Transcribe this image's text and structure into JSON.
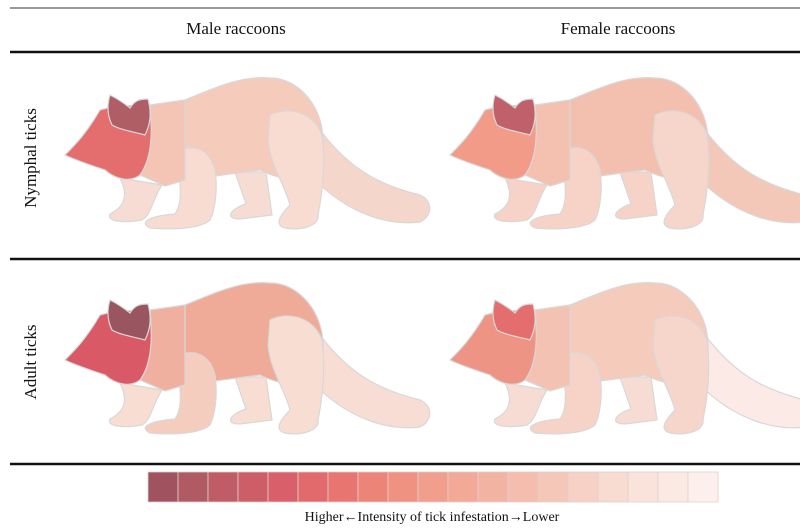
{
  "header": {
    "columns": [
      "Male raccoons",
      "Female raccoons"
    ]
  },
  "rows": [
    {
      "label": "Nymphal ticks",
      "panels": [
        {
          "colors": {
            "tail": "#f5d6cb",
            "far_legs": "#f7dcd3",
            "body": "#f5cbbb",
            "hind_leg": "#f8dcd2",
            "front_leg": "#f8dcd2",
            "neck": "#f4c4b4",
            "head": "#e46e6e",
            "ear": "#b05e66"
          }
        },
        {
          "colors": {
            "tail": "#f4c8b8",
            "far_legs": "#f6d3c6",
            "body": "#f3c0b0",
            "hind_leg": "#f6d6ca",
            "front_leg": "#f6d3c6",
            "neck": "#f4c0b0",
            "head": "#f19b88",
            "ear": "#c0606a"
          }
        }
      ]
    },
    {
      "label": "Adult ticks",
      "panels": [
        {
          "colors": {
            "tail": "#f7ddd4",
            "far_legs": "#f8ddd3",
            "body": "#efaa98",
            "hind_leg": "#f8ddd3",
            "front_leg": "#f5cdbf",
            "neck": "#f0b0a0",
            "head": "#d95a66",
            "ear": "#9a5660"
          }
        },
        {
          "colors": {
            "tail": "#fbeae5",
            "far_legs": "#f7dcd3",
            "body": "#f5cbbb",
            "hind_leg": "#f6d6ca",
            "front_leg": "#f6d3c6",
            "neck": "#f4c2b3",
            "head": "#ee9484",
            "ear": "#e46e6e"
          }
        }
      ]
    }
  ],
  "legend": {
    "colors": [
      "#a0525e",
      "#b05a64",
      "#bf5c66",
      "#cd5e68",
      "#d9606a",
      "#e2696c",
      "#e87570",
      "#ec8578",
      "#ef9282",
      "#f19e8c",
      "#f2a998",
      "#f3b3a3",
      "#f4bdae",
      "#f5c7b9",
      "#f7d1c5",
      "#f8dbd1",
      "#fae3db",
      "#fbeae4",
      "#fdf0ec"
    ],
    "caption": "Higher←Intensity of tick infestation→Lower"
  }
}
